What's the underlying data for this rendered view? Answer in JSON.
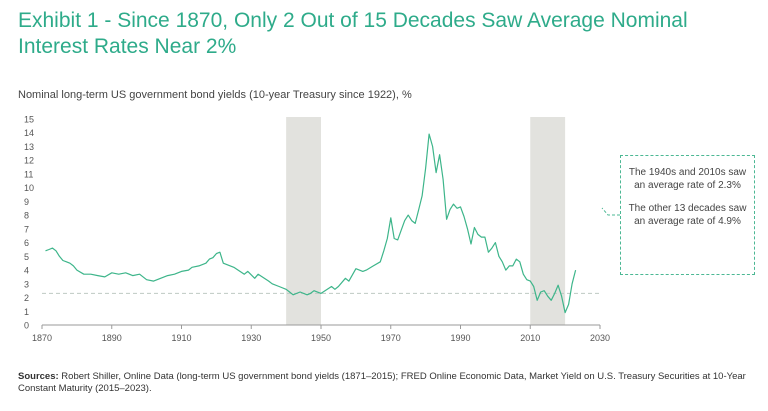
{
  "title": "Exhibit 1 - Since 1870, Only 2 Out of 15 Decades Saw Average Nominal Interest Rates Near 2%",
  "subtitle": "Nominal long-term US government bond yields (10-year Treasury since 1922), %",
  "callout": {
    "text1": "The 1940s and 2010s saw an average rate of 2.3%",
    "text2": "The other 13 decades saw an average rate of 4.9%"
  },
  "sources": {
    "label": "Sources:",
    "text": "Robert Shiller, Online Data (long-term US government bond yields (1871–2015); FRED Online Economic Data, Market Yield on U.S. Treasury Securities at 10-Year Constant Maturity (2015–2023)."
  },
  "colors": {
    "accent": "#2eab8a",
    "line": "#3db58a",
    "band": "#e2e2de",
    "reference": "#bfc9c2"
  },
  "chart_data": {
    "type": "line",
    "xlim": [
      1870,
      2030
    ],
    "ylim": [
      0,
      15
    ],
    "x_ticks": [
      "1870",
      "1890",
      "1910",
      "1930",
      "1950",
      "1970",
      "1990",
      "2010",
      "2030"
    ],
    "x_tick_values": [
      1870,
      1890,
      1910,
      1930,
      1950,
      1970,
      1990,
      2010,
      2030
    ],
    "y_ticks": [
      "0",
      "1",
      "2",
      "3",
      "4",
      "5",
      "6",
      "7",
      "8",
      "9",
      "10",
      "11",
      "12",
      "13",
      "14",
      "15"
    ],
    "y_tick_values": [
      0,
      1,
      2,
      3,
      4,
      5,
      6,
      7,
      8,
      9,
      10,
      11,
      12,
      13,
      14,
      15
    ],
    "shaded_periods": [
      [
        1940,
        1950
      ],
      [
        2010,
        2020
      ]
    ],
    "reference_line": 2.3,
    "series": [
      {
        "name": "Nominal long-term US government bond yields",
        "x": [
          1871,
          1872,
          1873,
          1874,
          1875,
          1876,
          1877,
          1878,
          1879,
          1880,
          1882,
          1884,
          1886,
          1888,
          1890,
          1892,
          1894,
          1896,
          1898,
          1900,
          1902,
          1904,
          1906,
          1908,
          1910,
          1912,
          1913,
          1915,
          1917,
          1918,
          1919,
          1920,
          1921,
          1922,
          1925,
          1928,
          1929,
          1931,
          1932,
          1935,
          1936,
          1938,
          1940,
          1941,
          1942,
          1944,
          1946,
          1947,
          1948,
          1950,
          1953,
          1954,
          1955,
          1957,
          1958,
          1960,
          1962,
          1963,
          1965,
          1967,
          1968,
          1969,
          1970,
          1971,
          1972,
          1973,
          1974,
          1975,
          1976,
          1977,
          1978,
          1979,
          1980,
          1981,
          1982,
          1983,
          1984,
          1985,
          1986,
          1987,
          1988,
          1989,
          1990,
          1991,
          1992,
          1993,
          1994,
          1995,
          1996,
          1997,
          1998,
          1999,
          2000,
          2001,
          2002,
          2003,
          2004,
          2005,
          2006,
          2007,
          2008,
          2009,
          2010,
          2011,
          2012,
          2013,
          2014,
          2015,
          2016,
          2017,
          2018,
          2019,
          2020,
          2021,
          2022,
          2023
        ],
        "values": [
          5.4,
          5.5,
          5.6,
          5.4,
          5.0,
          4.7,
          4.6,
          4.5,
          4.3,
          4.0,
          3.7,
          3.7,
          3.6,
          3.5,
          3.8,
          3.7,
          3.8,
          3.6,
          3.7,
          3.3,
          3.2,
          3.4,
          3.6,
          3.7,
          3.9,
          4.0,
          4.2,
          4.3,
          4.5,
          4.8,
          4.9,
          5.2,
          5.3,
          4.5,
          4.2,
          3.7,
          3.9,
          3.4,
          3.7,
          3.2,
          3.0,
          2.8,
          2.6,
          2.4,
          2.2,
          2.4,
          2.2,
          2.3,
          2.5,
          2.3,
          2.8,
          2.6,
          2.8,
          3.4,
          3.2,
          4.1,
          3.9,
          4.0,
          4.3,
          4.6,
          5.4,
          6.3,
          7.8,
          6.3,
          6.2,
          6.9,
          7.6,
          8.0,
          7.6,
          7.4,
          8.4,
          9.4,
          11.4,
          13.9,
          13.0,
          11.1,
          12.4,
          10.6,
          7.7,
          8.4,
          8.8,
          8.5,
          8.6,
          7.9,
          7.0,
          5.9,
          7.1,
          6.6,
          6.4,
          6.4,
          5.3,
          5.6,
          6.0,
          5.0,
          4.6,
          4.0,
          4.3,
          4.3,
          4.8,
          4.6,
          3.7,
          3.3,
          3.2,
          2.8,
          1.8,
          2.4,
          2.5,
          2.1,
          1.8,
          2.3,
          2.9,
          2.1,
          0.9,
          1.5,
          3.0,
          4.0
        ]
      }
    ]
  }
}
